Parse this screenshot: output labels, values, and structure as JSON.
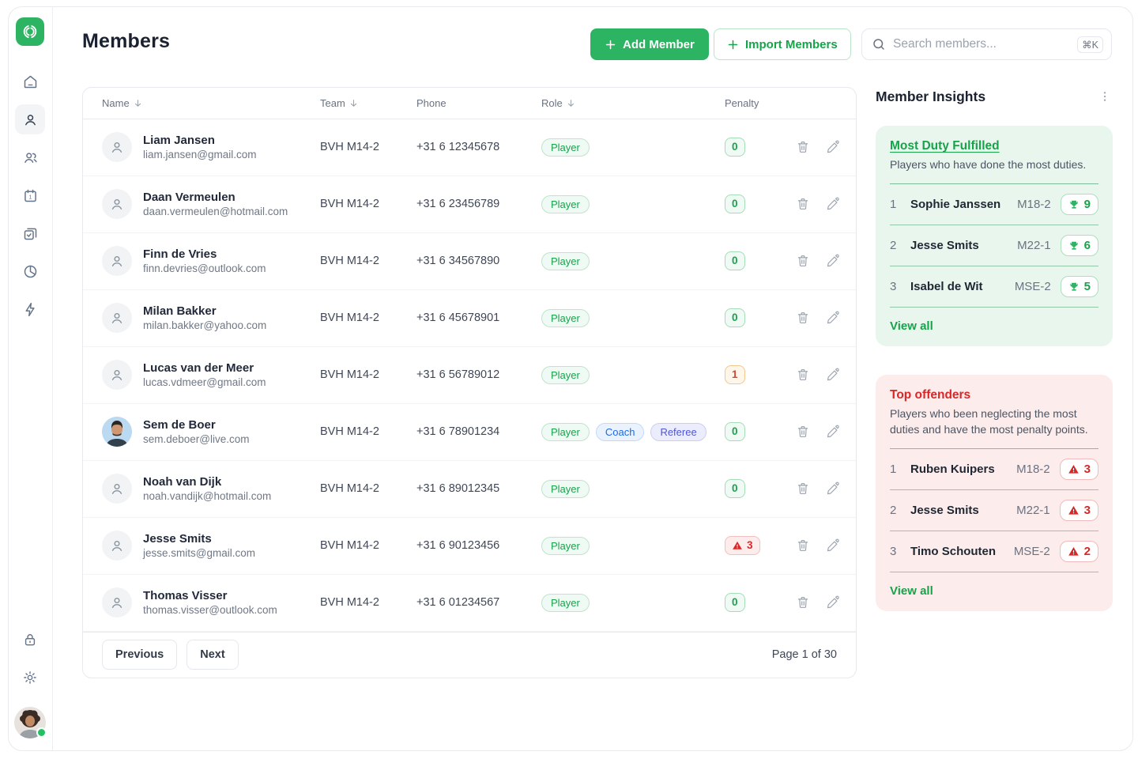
{
  "theme": {
    "green": "#2cb463",
    "green_text": "#17a34a",
    "red": "#dc2626",
    "warn_orange": "#d2493b",
    "coach_blue": "#1b6be6",
    "referee_indigo": "#4d55d8",
    "card_green_bg": "#e9f6ee",
    "card_red_bg": "#fcecec"
  },
  "sidebar": {
    "icons": [
      "logo",
      "home",
      "members",
      "teams",
      "calendar",
      "duties",
      "stats",
      "activity",
      "lock",
      "settings",
      "profile"
    ]
  },
  "header": {
    "title": "Members",
    "add_button": "Add Member",
    "import_button": "Import Members",
    "search_placeholder": "Search members...",
    "search_shortcut": "⌘K"
  },
  "table": {
    "columns": [
      {
        "label": "Name",
        "sortable": true
      },
      {
        "label": "Team",
        "sortable": true
      },
      {
        "label": "Phone",
        "sortable": false
      },
      {
        "label": "Role",
        "sortable": true
      },
      {
        "label": "Penalty",
        "sortable": false
      }
    ],
    "rows": [
      {
        "name": "Liam Jansen",
        "email": "liam.jansen@gmail.com",
        "team": "BVH M14-2",
        "phone": "+31 6 12345678",
        "roles": [
          "Player"
        ],
        "penalty": 0,
        "level": "ok",
        "photo": false
      },
      {
        "name": "Daan Vermeulen",
        "email": "daan.vermeulen@hotmail.com",
        "team": "BVH M14-2",
        "phone": "+31 6 23456789",
        "roles": [
          "Player"
        ],
        "penalty": 0,
        "level": "ok",
        "photo": false
      },
      {
        "name": "Finn de Vries",
        "email": "finn.devries@outlook.com",
        "team": "BVH M14-2",
        "phone": "+31 6 34567890",
        "roles": [
          "Player"
        ],
        "penalty": 0,
        "level": "ok",
        "photo": false
      },
      {
        "name": "Milan Bakker",
        "email": "milan.bakker@yahoo.com",
        "team": "BVH M14-2",
        "phone": "+31 6 45678901",
        "roles": [
          "Player"
        ],
        "penalty": 0,
        "level": "ok",
        "photo": false
      },
      {
        "name": "Lucas van der Meer",
        "email": "lucas.vdmeer@gmail.com",
        "team": "BVH M14-2",
        "phone": "+31 6 56789012",
        "roles": [
          "Player"
        ],
        "penalty": 1,
        "level": "warn",
        "photo": false
      },
      {
        "name": "Sem de Boer",
        "email": "sem.deboer@live.com",
        "team": "BVH M14-2",
        "phone": "+31 6 78901234",
        "roles": [
          "Player",
          "Coach",
          "Referee"
        ],
        "penalty": 0,
        "level": "ok",
        "photo": true
      },
      {
        "name": "Noah van Dijk",
        "email": "noah.vandijk@hotmail.com",
        "team": "BVH M14-2",
        "phone": "+31 6 89012345",
        "roles": [
          "Player"
        ],
        "penalty": 0,
        "level": "ok",
        "photo": false
      },
      {
        "name": "Jesse Smits",
        "email": "jesse.smits@gmail.com",
        "team": "BVH M14-2",
        "phone": "+31 6 90123456",
        "roles": [
          "Player"
        ],
        "penalty": 3,
        "level": "danger",
        "photo": false
      },
      {
        "name": "Thomas Visser",
        "email": "thomas.visser@outlook.com",
        "team": "BVH M14-2",
        "phone": "+31 6 01234567",
        "roles": [
          "Player"
        ],
        "penalty": 0,
        "level": "ok",
        "photo": false
      }
    ],
    "pagination": {
      "previous": "Previous",
      "next": "Next",
      "page_info": "Page 1 of 30"
    }
  },
  "insights": {
    "title": "Member Insights",
    "most_duty": {
      "title": "Most Duty Fulfilled",
      "description": "Players who have done the most duties.",
      "items": [
        {
          "rank": "1",
          "name": "Sophie Janssen",
          "team": "M18-2",
          "count": "9"
        },
        {
          "rank": "2",
          "name": "Jesse Smits",
          "team": "M22-1",
          "count": "6"
        },
        {
          "rank": "3",
          "name": "Isabel de Wit",
          "team": "MSE-2",
          "count": "5"
        }
      ],
      "view_all": "View all"
    },
    "top_offenders": {
      "title": "Top offenders",
      "description": "Players who been neglecting the most duties and have the most penalty points.",
      "items": [
        {
          "rank": "1",
          "name": "Ruben Kuipers",
          "team": "M18-2",
          "count": "3"
        },
        {
          "rank": "2",
          "name": "Jesse Smits",
          "team": "M22-1",
          "count": "3"
        },
        {
          "rank": "3",
          "name": "Timo Schouten",
          "team": "MSE-2",
          "count": "2"
        }
      ],
      "view_all": "View all"
    }
  }
}
